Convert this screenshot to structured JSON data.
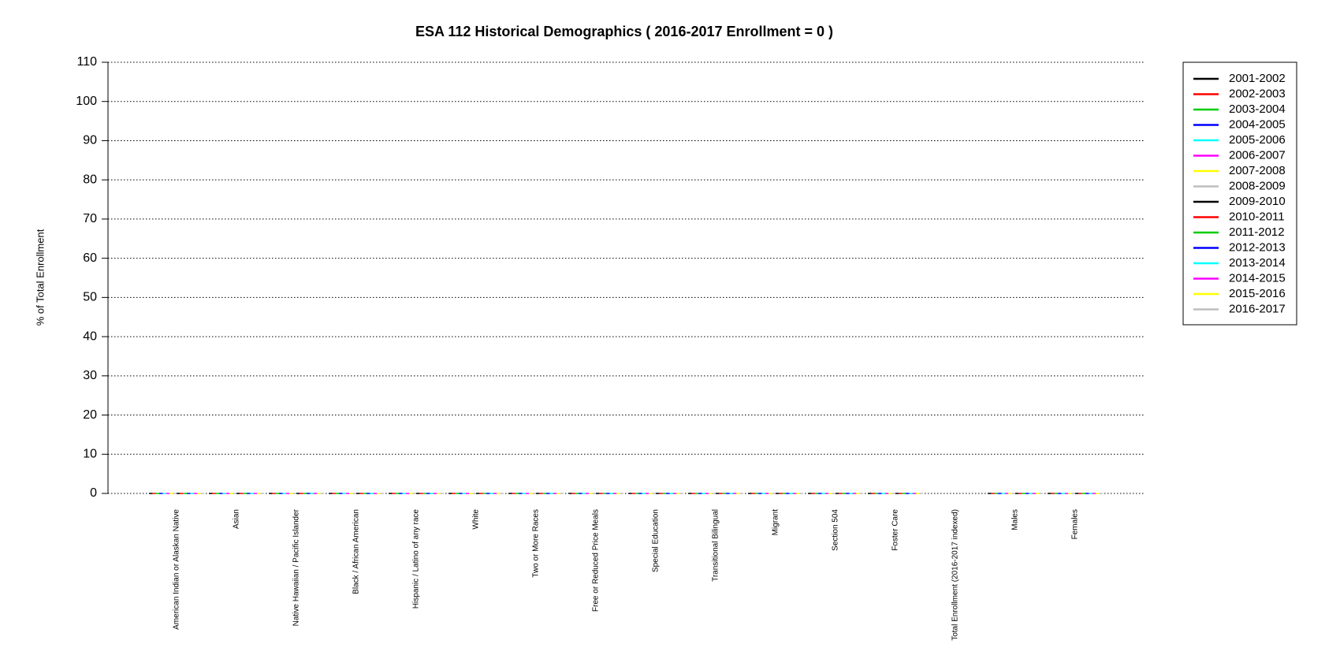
{
  "chart_data": {
    "type": "line",
    "title": "ESA 112 Historical Demographics  ( 2016-2017 Enrollment =  0 )",
    "ylabel": "% of Total Enrollment",
    "categories": [
      "American Indian or Alaskan Native",
      "Asian",
      "Native Hawaiian / Pacific Islander",
      "Black / African American",
      "Hispanic / Latino of any race",
      "White",
      "Two or More Races",
      "Free or Reduced Price Meals",
      "Special Education",
      "Transitional Bilingual",
      "Migrant",
      "Section 504",
      "Foster Care",
      "Total Enrollment (2016-2017 indexed)",
      "Males",
      "Females"
    ],
    "series": [
      {
        "name": "2001-2002",
        "color": "#000000",
        "values": [
          0,
          0,
          0,
          0,
          0,
          0,
          0,
          0,
          0,
          0,
          0,
          0,
          0,
          null,
          0,
          0
        ]
      },
      {
        "name": "2002-2003",
        "color": "#ff0000",
        "values": [
          0,
          0,
          0,
          0,
          0,
          0,
          0,
          0,
          0,
          0,
          0,
          0,
          0,
          null,
          0,
          0
        ]
      },
      {
        "name": "2003-2004",
        "color": "#00cd00",
        "values": [
          0,
          0,
          0,
          0,
          0,
          0,
          0,
          0,
          0,
          0,
          0,
          0,
          0,
          null,
          0,
          0
        ]
      },
      {
        "name": "2004-2005",
        "color": "#0000ff",
        "values": [
          0,
          0,
          0,
          0,
          0,
          0,
          0,
          0,
          0,
          0,
          0,
          0,
          0,
          null,
          0,
          0
        ]
      },
      {
        "name": "2005-2006",
        "color": "#00ffff",
        "values": [
          0,
          0,
          0,
          0,
          0,
          0,
          0,
          0,
          0,
          0,
          0,
          0,
          0,
          null,
          0,
          0
        ]
      },
      {
        "name": "2006-2007",
        "color": "#ff00ff",
        "values": [
          0,
          0,
          0,
          0,
          0,
          0,
          0,
          0,
          0,
          0,
          0,
          0,
          0,
          null,
          0,
          0
        ]
      },
      {
        "name": "2007-2008",
        "color": "#ffff00",
        "values": [
          0,
          0,
          0,
          0,
          0,
          0,
          0,
          0,
          0,
          0,
          0,
          0,
          0,
          null,
          0,
          0
        ]
      },
      {
        "name": "2008-2009",
        "color": "#bebebe",
        "values": [
          0,
          0,
          0,
          0,
          0,
          0,
          0,
          0,
          0,
          0,
          0,
          0,
          0,
          null,
          0,
          0
        ]
      },
      {
        "name": "2009-2010",
        "color": "#000000",
        "values": [
          0,
          0,
          0,
          0,
          0,
          0,
          0,
          0,
          0,
          0,
          0,
          0,
          0,
          null,
          0,
          0
        ]
      },
      {
        "name": "2010-2011",
        "color": "#ff0000",
        "values": [
          0,
          0,
          0,
          0,
          0,
          0,
          0,
          0,
          0,
          0,
          0,
          0,
          0,
          null,
          0,
          0
        ]
      },
      {
        "name": "2011-2012",
        "color": "#00cd00",
        "values": [
          0,
          0,
          0,
          0,
          0,
          0,
          0,
          0,
          0,
          0,
          0,
          0,
          0,
          null,
          0,
          0
        ]
      },
      {
        "name": "2012-2013",
        "color": "#0000ff",
        "values": [
          0,
          0,
          0,
          0,
          0,
          0,
          0,
          0,
          0,
          0,
          0,
          0,
          0,
          null,
          0,
          0
        ]
      },
      {
        "name": "2013-2014",
        "color": "#00ffff",
        "values": [
          0,
          0,
          0,
          0,
          0,
          0,
          0,
          0,
          0,
          0,
          0,
          0,
          0,
          null,
          0,
          0
        ]
      },
      {
        "name": "2014-2015",
        "color": "#ff00ff",
        "values": [
          0,
          0,
          0,
          0,
          0,
          0,
          0,
          0,
          0,
          0,
          0,
          0,
          0,
          null,
          0,
          0
        ]
      },
      {
        "name": "2015-2016",
        "color": "#ffff00",
        "values": [
          0,
          0,
          0,
          0,
          0,
          0,
          0,
          0,
          0,
          0,
          0,
          0,
          0,
          null,
          0,
          0
        ]
      },
      {
        "name": "2016-2017",
        "color": "#bebebe",
        "values": [
          0,
          0,
          0,
          0,
          0,
          0,
          0,
          0,
          0,
          0,
          0,
          0,
          0,
          null,
          0,
          0
        ]
      }
    ],
    "ylim": [
      0,
      110
    ],
    "yticks": [
      0,
      10,
      20,
      30,
      40,
      50,
      60,
      70,
      80,
      90,
      100,
      110
    ],
    "grid": true
  }
}
